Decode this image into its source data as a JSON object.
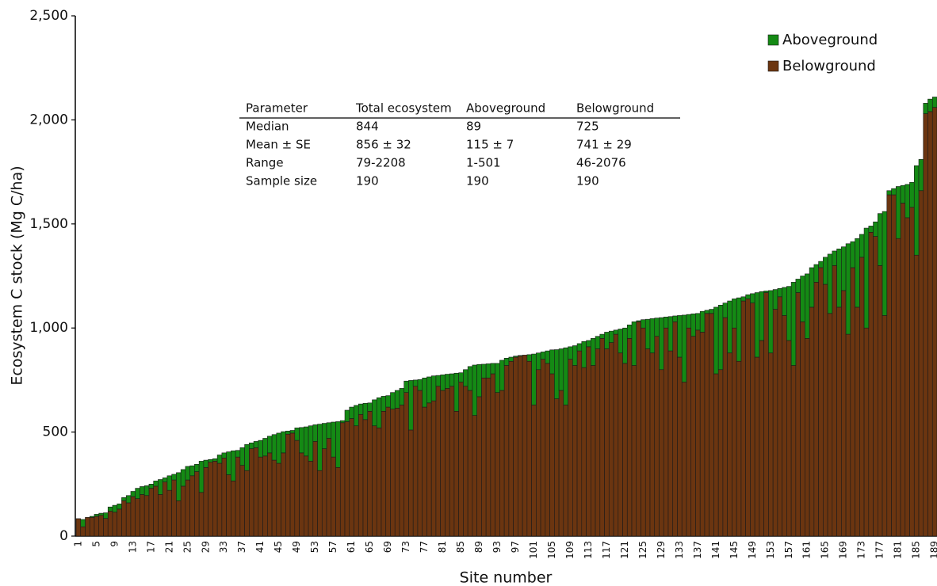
{
  "chart_data": {
    "type": "stacked_bar",
    "y_label": "Ecosystem C stock (Mg C/ha)",
    "x_label": "Site number",
    "ylim": [
      0,
      2500
    ],
    "yticks": [
      0,
      500,
      {
        "value": 1000,
        "label": "1,000"
      },
      {
        "value": 1500,
        "label": "1,500"
      },
      {
        "value": 2000,
        "label": "2,000"
      },
      {
        "value": 2500,
        "label": "2,500"
      }
    ],
    "legend": "top-right",
    "categories": [
      "1",
      null,
      null,
      null,
      "5",
      null,
      null,
      null,
      "9",
      null,
      null,
      null,
      "13",
      null,
      null,
      null,
      "17",
      null,
      null,
      null,
      "21",
      null,
      null,
      null,
      "25",
      null,
      null,
      null,
      "29",
      null,
      null,
      null,
      "33",
      null,
      null,
      null,
      "37",
      null,
      null,
      null,
      "41",
      null,
      null,
      null,
      "45",
      null,
      null,
      null,
      "49",
      null,
      null,
      null,
      "53",
      null,
      null,
      null,
      "57",
      null,
      null,
      null,
      "61",
      null,
      null,
      null,
      "65",
      null,
      null,
      null,
      "69",
      null,
      null,
      null,
      "73",
      null,
      null,
      null,
      "77",
      null,
      null,
      null,
      "81",
      null,
      null,
      null,
      "85",
      null,
      null,
      null,
      "89",
      null,
      null,
      null,
      "93",
      null,
      null,
      null,
      "97",
      null,
      null,
      null,
      "101",
      null,
      null,
      null,
      "105",
      null,
      null,
      null,
      "109",
      null,
      null,
      null,
      "113",
      null,
      null,
      null,
      "117",
      null,
      null,
      null,
      "121",
      null,
      null,
      null,
      "125",
      null,
      null,
      null,
      "129",
      null,
      null,
      null,
      "133",
      null,
      null,
      null,
      "137",
      null,
      null,
      null,
      "141",
      null,
      null,
      null,
      "145",
      null,
      null,
      null,
      "149",
      null,
      null,
      null,
      "153",
      null,
      null,
      null,
      "157",
      null,
      null,
      null,
      "161",
      null,
      null,
      null,
      "165",
      null,
      null,
      null,
      "169",
      null,
      null,
      null,
      "173",
      null,
      null,
      null,
      "177",
      null,
      null,
      null,
      "181",
      null,
      null,
      null,
      "185",
      null,
      null,
      null,
      "189"
    ],
    "series": [
      {
        "name": "Aboveground",
        "color": "#148a14",
        "values": [
          0,
          35,
          0,
          5,
          10,
          10,
          27,
          20,
          33,
          25,
          15,
          35,
          25,
          50,
          38,
          47,
          20,
          25,
          72,
          20,
          70,
          27,
          135,
          80,
          65,
          48,
          35,
          150,
          35,
          13,
          12,
          40,
          25,
          110,
          145,
          32,
          85,
          125,
          28,
          30,
          80,
          85,
          80,
          123,
          145,
          102,
          15,
          13,
          60,
          122,
          140,
          170,
          80,
          223,
          122,
          75,
          168,
          220,
          10,
          55,
          55,
          98,
          50,
          78,
          40,
          125,
          145,
          72,
          55,
          80,
          85,
          80,
          55,
          238,
          30,
          52,
          140,
          125,
          120,
          52,
          75,
          68,
          60,
          183,
          45,
          80,
          115,
          242,
          155,
          66,
          68,
          50,
          140,
          145,
          35,
          20,
          5,
          3,
          0,
          32,
          245,
          80,
          35,
          60,
          115,
          236,
          200,
          275,
          60,
          95,
          35,
          125,
          30,
          130,
          60,
          20,
          80,
          55,
          20,
          115,
          170,
          65,
          210,
          5,
          40,
          142,
          165,
          88,
          250,
          53,
          165,
          28,
          200,
          322,
          65,
          108,
          80,
          100,
          15,
          20,
          320,
          310,
          70,
          250,
          140,
          305,
          20,
          20,
          45,
          310,
          235,
          8,
          300,
          95,
          40,
          135,
          260,
          400,
          65,
          220,
          310,
          190,
          85,
          30,
          130,
          285,
          70,
          280,
          210,
          435,
          125,
          330,
          110,
          480,
          30,
          70,
          250,
          500,
          20,
          30,
          250,
          85,
          160,
          120,
          430,
          150,
          50,
          60,
          50
        ]
      },
      {
        "name": "Belowground",
        "color": "#6b3510",
        "values": [
          84,
          45,
          90,
          90,
          95,
          100,
          85,
          120,
          115,
          130,
          170,
          160,
          190,
          180,
          200,
          195,
          230,
          240,
          200,
          260,
          220,
          270,
          170,
          240,
          270,
          290,
          310,
          210,
          330,
          355,
          360,
          350,
          375,
          295,
          265,
          380,
          340,
          315,
          420,
          425,
          380,
          385,
          400,
          365,
          350,
          400,
          490,
          495,
          460,
          400,
          385,
          360,
          455,
          315,
          420,
          470,
          380,
          330,
          545,
          550,
          565,
          530,
          585,
          560,
          600,
          530,
          520,
          600,
          620,
          610,
          615,
          630,
          690,
          510,
          720,
          700,
          620,
          640,
          650,
          720,
          700,
          710,
          720,
          600,
          740,
          720,
          700,
          580,
          670,
          760,
          760,
          780,
          690,
          700,
          820,
          840,
          860,
          865,
          870,
          840,
          630,
          800,
          850,
          830,
          780,
          660,
          700,
          630,
          850,
          820,
          890,
          810,
          910,
          820,
          900,
          950,
          900,
          930,
          970,
          880,
          830,
          950,
          820,
          1030,
          1000,
          900,
          880,
          960,
          800,
          1000,
          890,
          1030,
          860,
          740,
          1000,
          960,
          990,
          980,
          1070,
          1070,
          780,
          800,
          1050,
          880,
          1000,
          840,
          1130,
          1140,
          1120,
          860,
          940,
          1170,
          880,
          1090,
          1150,
          1060,
          940,
          820,
          1170,
          1030,
          950,
          1100,
          1220,
          1290,
          1210,
          1070,
          1300,
          1100,
          1180,
          970,
          1290,
          1100,
          1340,
          1000,
          1460,
          1440,
          1300,
          1060,
          1640,
          1640,
          1430,
          1600,
          1530,
          1580,
          1350,
          1660,
          2030,
          2040,
          2060
        ]
      }
    ],
    "table": {
      "header": [
        "Parameter",
        "Total ecosystem",
        "Aboveground",
        "Belowground"
      ],
      "rows": [
        [
          "Median",
          "844",
          "89",
          "725"
        ],
        [
          "Mean ± SE",
          "856 ± 32",
          "115 ± 7",
          "741 ± 29"
        ],
        [
          "Range",
          "79-2208",
          "1-501",
          "46-2076"
        ],
        [
          "Sample size",
          "190",
          "190",
          "190"
        ]
      ]
    }
  }
}
